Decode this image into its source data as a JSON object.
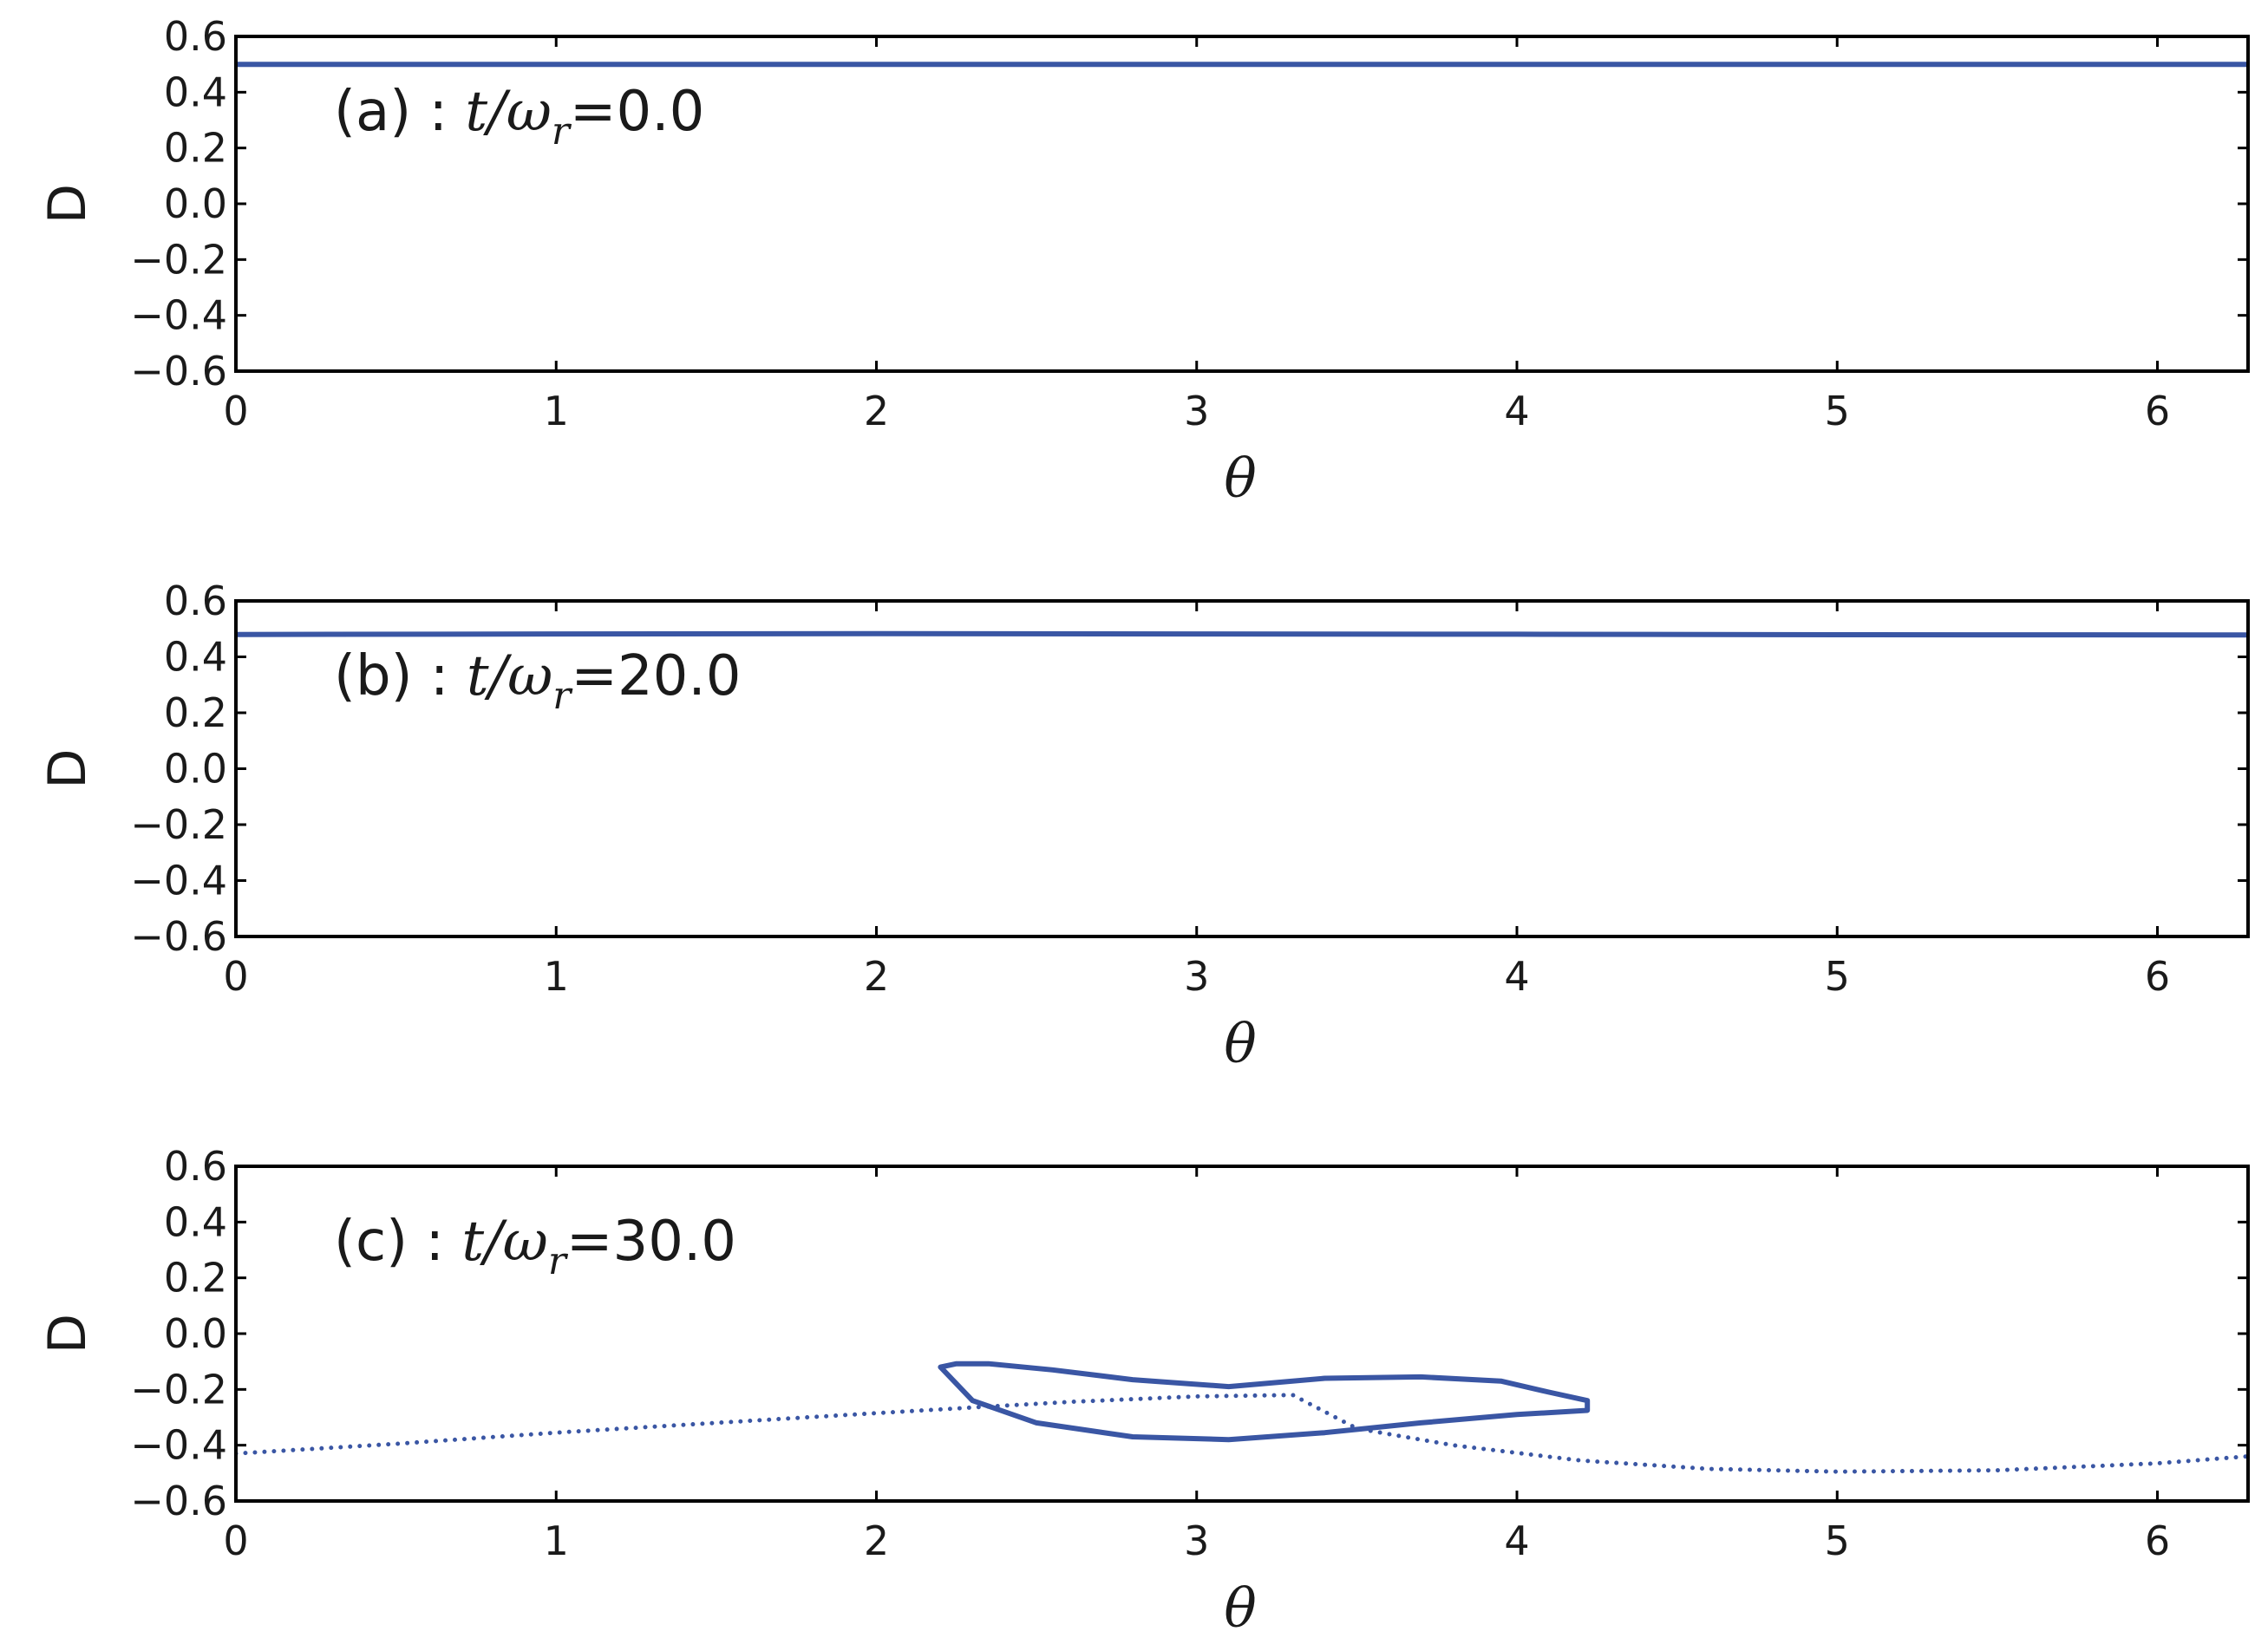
{
  "figure": {
    "line_color": "#3a56a4"
  },
  "chart_data": [
    {
      "type": "line",
      "panel": "a",
      "annotation": {
        "prefix": "(a) : ",
        "t": "t",
        "slash": "/",
        "omega": "ω",
        "sub": "r",
        "value": "=0.0"
      },
      "xlabel": "θ",
      "ylabel": "D",
      "xlim": [
        0,
        6.283
      ],
      "ylim": [
        -0.6,
        0.6
      ],
      "xticks": [
        "0",
        "1",
        "2",
        "3",
        "4",
        "5",
        "6"
      ],
      "yticks": [
        "0.6",
        "0.4",
        "0.2",
        "0.0",
        "−0.2",
        "−0.4",
        "−0.6"
      ],
      "grid": false,
      "series": [
        {
          "style": "solid",
          "x": [
            0,
            6.283
          ],
          "y": [
            0.5,
            0.5
          ]
        }
      ]
    },
    {
      "type": "line",
      "panel": "b",
      "annotation": {
        "prefix": "(b) : ",
        "t": "t",
        "slash": "/",
        "omega": "ω",
        "sub": "r",
        "value": "=20.0"
      },
      "xlabel": "θ",
      "ylabel": "D",
      "xlim": [
        0,
        6.283
      ],
      "ylim": [
        -0.6,
        0.6
      ],
      "xticks": [
        "0",
        "1",
        "2",
        "3",
        "4",
        "5",
        "6"
      ],
      "yticks": [
        "0.6",
        "0.4",
        "0.2",
        "0.0",
        "−0.2",
        "−0.4",
        "−0.6"
      ],
      "grid": false,
      "series": [
        {
          "style": "solid",
          "x": [
            0,
            1,
            2,
            3,
            4,
            5,
            6.283
          ],
          "y": [
            0.48,
            0.482,
            0.483,
            0.482,
            0.481,
            0.479,
            0.478
          ]
        }
      ]
    },
    {
      "type": "line",
      "panel": "c",
      "annotation": {
        "prefix": "(c) : ",
        "t": "t",
        "slash": "/",
        "omega": "ω",
        "sub": "r",
        "value": "=30.0"
      },
      "xlabel": "θ",
      "ylabel": "D",
      "xlim": [
        0,
        6.283
      ],
      "ylim": [
        -0.6,
        0.6
      ],
      "xticks": [
        "0",
        "1",
        "2",
        "3",
        "4",
        "5",
        "6"
      ],
      "yticks": [
        "0.6",
        "0.4",
        "0.2",
        "0.0",
        "−0.2",
        "−0.4",
        "−0.6"
      ],
      "grid": false,
      "series": [
        {
          "style": "dotted",
          "x": [
            0,
            0.5,
            1.0,
            1.5,
            2.0,
            2.3,
            2.6,
            3.0,
            3.3,
            3.5,
            3.8,
            4.2,
            4.6,
            5.0,
            5.5,
            6.0,
            6.283
          ],
          "y": [
            -0.43,
            -0.395,
            -0.355,
            -0.32,
            -0.285,
            -0.265,
            -0.245,
            -0.225,
            -0.22,
            -0.34,
            -0.4,
            -0.455,
            -0.485,
            -0.495,
            -0.49,
            -0.465,
            -0.44
          ]
        },
        {
          "style": "solid-loop",
          "x": [
            2.2,
            2.25,
            2.35,
            2.55,
            2.8,
            3.1,
            3.4,
            3.7,
            3.95,
            4.1,
            4.22,
            4.22,
            4.0,
            3.7,
            3.4,
            3.1,
            2.8,
            2.5,
            2.3,
            2.2
          ],
          "y": [
            -0.12,
            -0.108,
            -0.108,
            -0.13,
            -0.165,
            -0.19,
            -0.16,
            -0.155,
            -0.17,
            -0.21,
            -0.24,
            -0.275,
            -0.29,
            -0.32,
            -0.355,
            -0.38,
            -0.37,
            -0.32,
            -0.24,
            -0.12
          ]
        }
      ]
    }
  ]
}
